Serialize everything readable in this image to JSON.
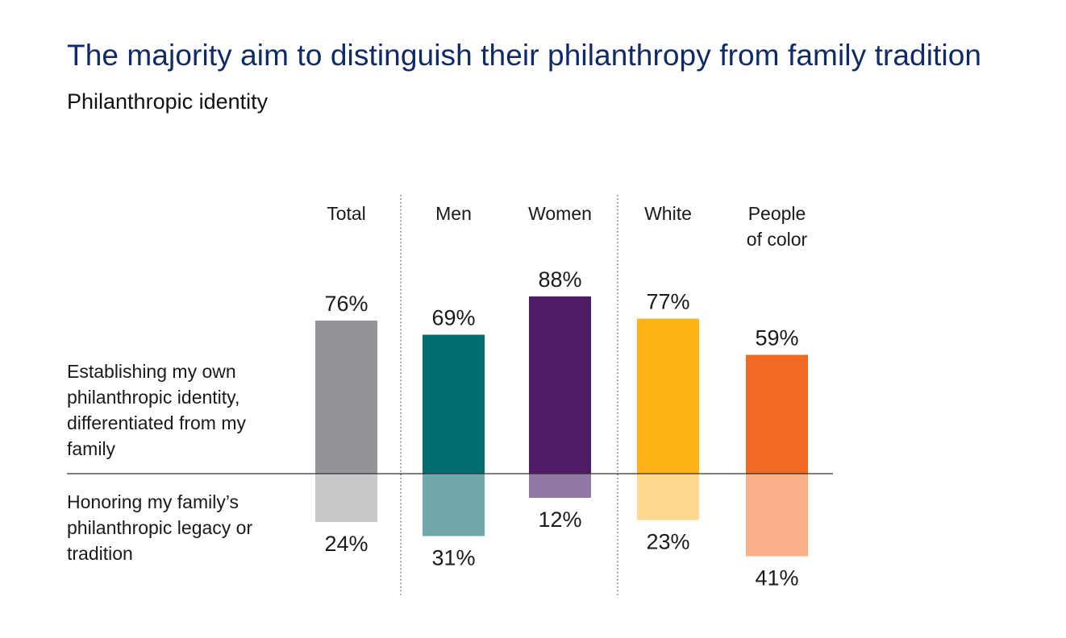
{
  "title": "The majority aim to distinguish their philanthropy from family tradition",
  "subtitle": "Philanthropic identity",
  "row_labels": {
    "top": "Establishing my own philanthropic identity, differentiated from my family",
    "bottom": "Honoring my family’s philanthropic legacy or tradition"
  },
  "chart_data": {
    "type": "bar",
    "title": "The majority aim to distinguish their philanthropy from family tradition",
    "subtitle": "Philanthropic identity",
    "categories": [
      [
        "Total"
      ],
      [
        "Men"
      ],
      [
        "Women"
      ],
      [
        "White"
      ],
      [
        "People",
        "of color"
      ]
    ],
    "series": [
      {
        "name": "Establishing my own philanthropic identity, differentiated from my family",
        "values": [
          76,
          69,
          88,
          77,
          59
        ],
        "value_labels": [
          "76%",
          "69%",
          "88%",
          "77%",
          "59%"
        ],
        "colors": [
          "#929497",
          "#006e70",
          "#501c68",
          "#fcb316",
          "#f26922"
        ],
        "direction": "up"
      },
      {
        "name": "Honoring my family’s philanthropic legacy or tradition",
        "values": [
          24,
          31,
          12,
          23,
          41
        ],
        "value_labels": [
          "24%",
          "31%",
          "12%",
          "23%",
          "41%"
        ],
        "colors": [
          "#c8c9cb",
          "#73a7ad",
          "#9178a6",
          "#fed990",
          "#f9b088"
        ],
        "direction": "down"
      }
    ],
    "group_separators_after": [
      0,
      2
    ],
    "ylim": [
      0,
      100
    ],
    "grid": false,
    "legend": "none"
  }
}
